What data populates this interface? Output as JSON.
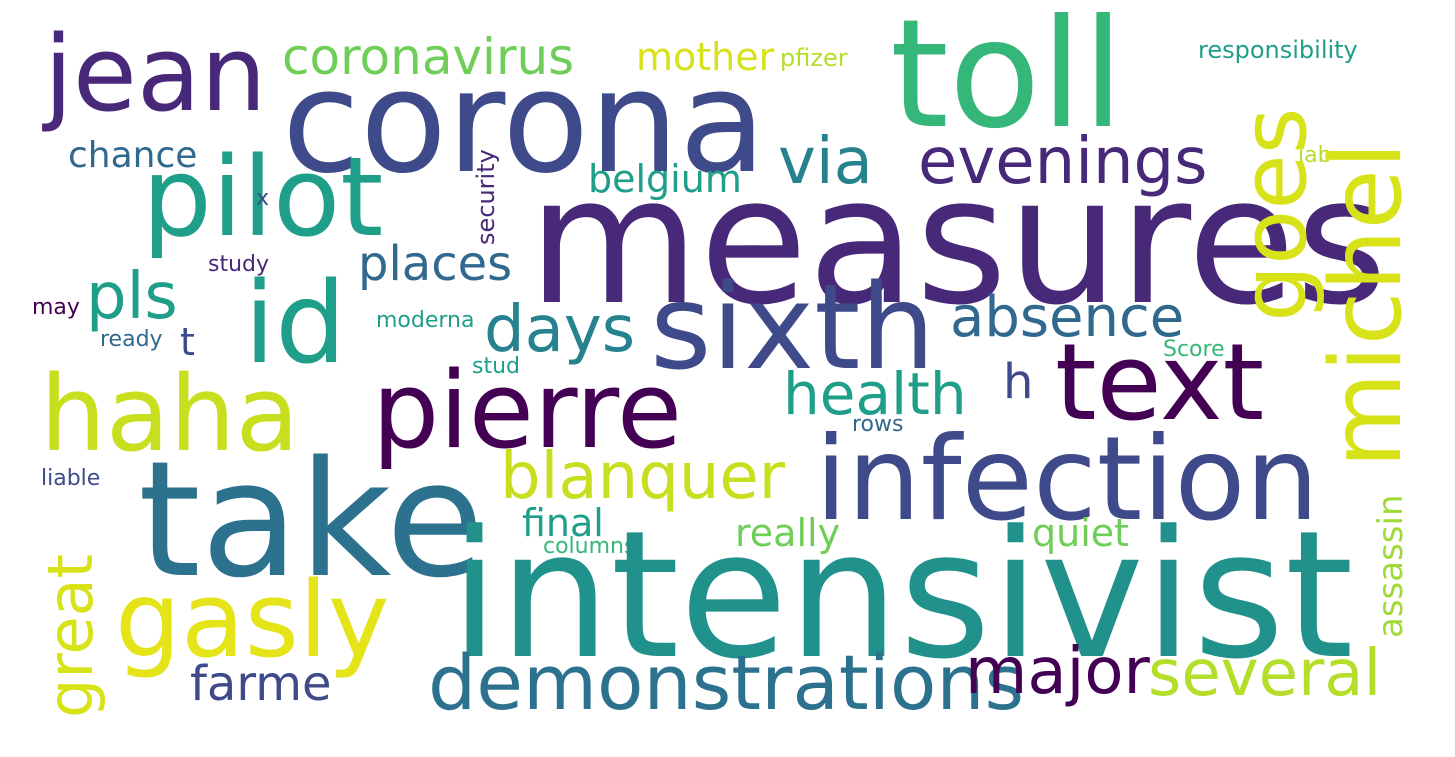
{
  "colors": {
    "background": "#ffffff",
    "dark_purple": "#440154",
    "purple": "#482878",
    "indigo": "#3e4a89",
    "blue": "#31688e",
    "teal": "#26828e",
    "green_teal": "#1f9e89",
    "green": "#35b779",
    "light_green": "#6ece58",
    "yellow_green": "#b5de2b",
    "yellow": "#fde725"
  },
  "words": {
    "measures": "measures",
    "intensivist": "intensivist",
    "corona": "corona",
    "take": "take",
    "toll": "toll",
    "infection": "infection",
    "sixth": "sixth",
    "pilot": "pilot",
    "text": "text",
    "pierre": "pierre",
    "haha": "haha",
    "gasly": "gasly",
    "jean": "jean",
    "id": "id",
    "michel": "michel",
    "goes": "goes",
    "demonstrations": "demonstrations",
    "several": "several",
    "major": "major",
    "evenings": "evenings",
    "blanquer": "blanquer",
    "days": "days",
    "pls": "pls",
    "via": "via",
    "absence": "absence",
    "health": "health",
    "great": "great",
    "coronavirus": "coronavirus",
    "places": "places",
    "farme": "farme",
    "h": "h",
    "mother": "mother",
    "belgium": "belgium",
    "chance": "chance",
    "really": "really",
    "quiet": "quiet",
    "final": "final",
    "assassin": "assassin",
    "security": "security",
    "t": "t",
    "responsibility": "responsibility",
    "pfizer": "pfizer",
    "moderna": "moderna",
    "score": "Score",
    "columns": "columns",
    "study": "study",
    "stud": "stud",
    "rows": "rows",
    "liable": "liable",
    "ready": "ready",
    "may": "may",
    "jab": "jab",
    "x": "x"
  }
}
